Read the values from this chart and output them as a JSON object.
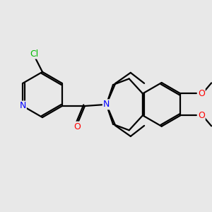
{
  "background_color": "#e8e8e8",
  "bond_color": "#000000",
  "atom_colors": {
    "N": "#0000ff",
    "O": "#ff0000",
    "Cl": "#00bb00"
  },
  "bond_width": 1.6,
  "dbo": 0.055,
  "figsize": [
    3.0,
    3.0
  ],
  "dpi": 100
}
